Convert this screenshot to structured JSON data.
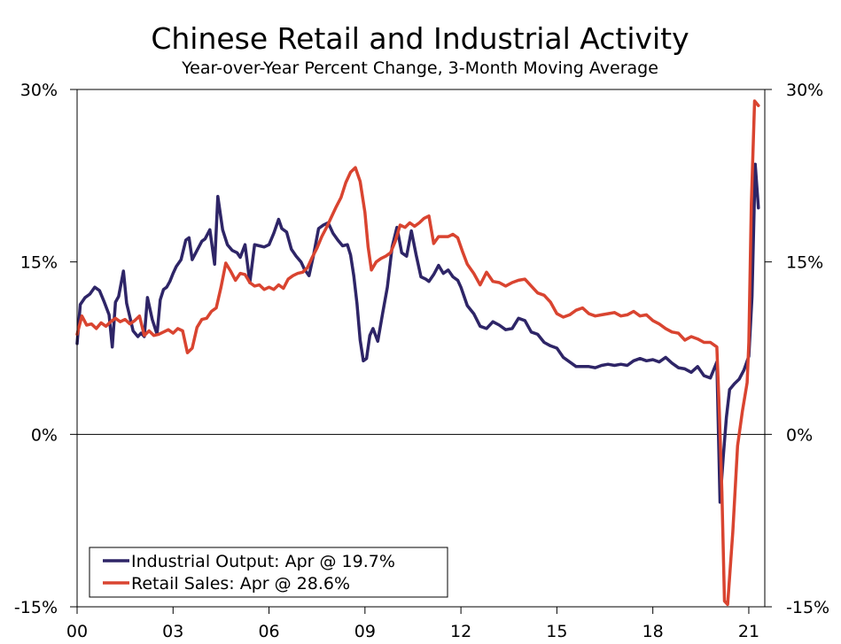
{
  "chart_data": {
    "type": "line",
    "title": "Chinese Retail and Industrial Activity",
    "subtitle": "Year-over-Year Percent Change, 3-Month Moving Average",
    "xlabel": "",
    "ylabel": "",
    "ylim": [
      -15,
      30
    ],
    "xlim": [
      2000,
      2021.5
    ],
    "y_ticks": [
      {
        "value": 30,
        "label": "30%"
      },
      {
        "value": 15,
        "label": "15%"
      },
      {
        "value": 0,
        "label": "0%"
      },
      {
        "value": -15,
        "label": "-15%"
      }
    ],
    "x_ticks": [
      {
        "value": 2000,
        "label": "00"
      },
      {
        "value": 2003,
        "label": "03"
      },
      {
        "value": 2006,
        "label": "06"
      },
      {
        "value": 2009,
        "label": "09"
      },
      {
        "value": 2012,
        "label": "12"
      },
      {
        "value": 2015,
        "label": "15"
      },
      {
        "value": 2018,
        "label": "18"
      },
      {
        "value": 2021,
        "label": "21"
      }
    ],
    "legend_position": "bottom-left",
    "series": [
      {
        "name": "Industrial Output",
        "legend_label": "Industrial Output: Apr @ 19.7%",
        "color": "#2e2567",
        "x": [
          2000.0,
          2000.1,
          2000.25,
          2000.4,
          2000.55,
          2000.7,
          2000.85,
          2001.0,
          2001.1,
          2001.2,
          2001.3,
          2001.45,
          2001.55,
          2001.65,
          2001.75,
          2001.9,
          2002.0,
          2002.1,
          2002.2,
          2002.35,
          2002.5,
          2002.6,
          2002.7,
          2002.8,
          2002.9,
          2003.0,
          2003.1,
          2003.25,
          2003.4,
          2003.5,
          2003.6,
          2003.75,
          2003.9,
          2004.0,
          2004.15,
          2004.3,
          2004.4,
          2004.55,
          2004.7,
          2004.85,
          2005.0,
          2005.1,
          2005.25,
          2005.4,
          2005.55,
          2005.7,
          2005.85,
          2006.0,
          2006.15,
          2006.3,
          2006.4,
          2006.55,
          2006.7,
          2006.85,
          2007.0,
          2007.1,
          2007.25,
          2007.4,
          2007.55,
          2007.7,
          2007.85,
          2008.0,
          2008.15,
          2008.3,
          2008.45,
          2008.55,
          2008.65,
          2008.75,
          2008.85,
          2008.95,
          2009.05,
          2009.15,
          2009.25,
          2009.4,
          2009.55,
          2009.7,
          2009.85,
          2010.0,
          2010.15,
          2010.3,
          2010.45,
          2010.6,
          2010.75,
          2010.9,
          2011.0,
          2011.15,
          2011.3,
          2011.45,
          2011.6,
          2011.75,
          2011.9,
          2012.0,
          2012.2,
          2012.4,
          2012.6,
          2012.8,
          2013.0,
          2013.2,
          2013.4,
          2013.6,
          2013.8,
          2014.0,
          2014.2,
          2014.4,
          2014.6,
          2014.8,
          2015.0,
          2015.2,
          2015.4,
          2015.6,
          2015.8,
          2016.0,
          2016.2,
          2016.4,
          2016.6,
          2016.8,
          2017.0,
          2017.2,
          2017.4,
          2017.6,
          2017.8,
          2018.0,
          2018.2,
          2018.4,
          2018.6,
          2018.8,
          2019.0,
          2019.2,
          2019.4,
          2019.6,
          2019.8,
          2020.0,
          2020.1,
          2020.2,
          2020.3,
          2020.4,
          2020.55,
          2020.7,
          2020.85,
          2021.0,
          2021.1,
          2021.2,
          2021.3
        ],
        "values": [
          7.9,
          11.3,
          11.9,
          12.2,
          12.8,
          12.5,
          11.5,
          10.4,
          7.6,
          11.5,
          12.0,
          14.2,
          11.4,
          10.2,
          9.0,
          8.5,
          8.8,
          8.5,
          11.9,
          10.0,
          8.7,
          11.7,
          12.6,
          12.8,
          13.3,
          14.0,
          14.6,
          15.2,
          16.9,
          17.1,
          15.2,
          16.0,
          16.8,
          17.0,
          17.8,
          14.8,
          20.7,
          17.8,
          16.5,
          16.0,
          15.8,
          15.4,
          16.5,
          13.2,
          16.5,
          16.4,
          16.3,
          16.5,
          17.5,
          18.7,
          17.9,
          17.6,
          16.1,
          15.5,
          15.0,
          14.4,
          13.8,
          15.7,
          17.9,
          18.2,
          18.4,
          17.5,
          16.9,
          16.4,
          16.5,
          15.6,
          13.8,
          11.4,
          8.2,
          6.4,
          6.6,
          8.6,
          9.2,
          8.1,
          10.5,
          12.8,
          16.3,
          18.0,
          15.8,
          15.5,
          17.7,
          15.6,
          13.7,
          13.5,
          13.3,
          13.9,
          14.7,
          14.0,
          14.3,
          13.7,
          13.4,
          12.8,
          11.2,
          10.5,
          9.4,
          9.2,
          9.8,
          9.5,
          9.1,
          9.2,
          10.1,
          9.9,
          8.9,
          8.7,
          8.0,
          7.7,
          7.5,
          6.7,
          6.3,
          5.9,
          5.9,
          5.9,
          5.8,
          6.0,
          6.1,
          6.0,
          6.1,
          6.0,
          6.4,
          6.6,
          6.4,
          6.5,
          6.3,
          6.7,
          6.2,
          5.8,
          5.7,
          5.4,
          5.9,
          5.1,
          4.9,
          6.3,
          -5.9,
          -2.0,
          1.5,
          3.9,
          4.4,
          4.8,
          5.6,
          6.8,
          12.0,
          23.5,
          19.7
        ]
      },
      {
        "name": "Retail Sales",
        "legend_label": "Retail Sales: Apr @ 28.6%",
        "color": "#d94430",
        "x": [
          2000.0,
          2000.15,
          2000.3,
          2000.45,
          2000.6,
          2000.75,
          2000.9,
          2001.05,
          2001.2,
          2001.35,
          2001.5,
          2001.65,
          2001.8,
          2001.95,
          2002.1,
          2002.25,
          2002.4,
          2002.55,
          2002.7,
          2002.85,
          2003.0,
          2003.15,
          2003.3,
          2003.45,
          2003.6,
          2003.75,
          2003.9,
          2004.05,
          2004.2,
          2004.35,
          2004.5,
          2004.65,
          2004.8,
          2004.95,
          2005.1,
          2005.25,
          2005.4,
          2005.55,
          2005.7,
          2005.85,
          2006.0,
          2006.15,
          2006.3,
          2006.45,
          2006.6,
          2006.75,
          2006.9,
          2007.05,
          2007.2,
          2007.35,
          2007.5,
          2007.65,
          2007.8,
          2007.95,
          2008.1,
          2008.25,
          2008.4,
          2008.55,
          2008.7,
          2008.85,
          2009.0,
          2009.1,
          2009.2,
          2009.35,
          2009.5,
          2009.65,
          2009.8,
          2009.95,
          2010.1,
          2010.25,
          2010.4,
          2010.55,
          2010.7,
          2010.85,
          2011.0,
          2011.15,
          2011.3,
          2011.45,
          2011.6,
          2011.75,
          2011.9,
          2012.05,
          2012.2,
          2012.4,
          2012.6,
          2012.8,
          2013.0,
          2013.2,
          2013.4,
          2013.6,
          2013.8,
          2014.0,
          2014.2,
          2014.4,
          2014.6,
          2014.8,
          2015.0,
          2015.2,
          2015.4,
          2015.6,
          2015.8,
          2016.0,
          2016.2,
          2016.4,
          2016.6,
          2016.8,
          2017.0,
          2017.2,
          2017.4,
          2017.6,
          2017.8,
          2018.0,
          2018.2,
          2018.4,
          2018.6,
          2018.8,
          2019.0,
          2019.2,
          2019.4,
          2019.6,
          2019.8,
          2020.0,
          2020.08,
          2020.16,
          2020.24,
          2020.34,
          2020.5,
          2020.65,
          2020.8,
          2020.95,
          2021.0,
          2021.08,
          2021.18,
          2021.3
        ],
        "values": [
          8.7,
          10.3,
          9.5,
          9.6,
          9.2,
          9.7,
          9.4,
          9.8,
          10.1,
          9.8,
          10.0,
          9.6,
          9.9,
          10.3,
          8.6,
          9.0,
          8.6,
          8.7,
          8.9,
          9.1,
          8.8,
          9.2,
          9.0,
          7.1,
          7.5,
          9.3,
          10.0,
          10.1,
          10.7,
          11.0,
          12.8,
          14.9,
          14.2,
          13.4,
          14.0,
          13.9,
          13.2,
          12.9,
          13.0,
          12.6,
          12.8,
          12.6,
          13.0,
          12.7,
          13.5,
          13.8,
          14.0,
          14.1,
          14.5,
          15.4,
          16.2,
          17.2,
          18.0,
          18.9,
          19.8,
          20.6,
          21.9,
          22.8,
          23.2,
          22.0,
          19.3,
          16.3,
          14.3,
          15.0,
          15.3,
          15.5,
          15.8,
          16.8,
          18.2,
          18.0,
          18.4,
          18.1,
          18.4,
          18.8,
          19.0,
          16.6,
          17.2,
          17.2,
          17.2,
          17.4,
          17.1,
          15.9,
          14.8,
          14.0,
          13.0,
          14.1,
          13.3,
          13.2,
          12.9,
          13.2,
          13.4,
          13.5,
          12.9,
          12.3,
          12.1,
          11.5,
          10.5,
          10.2,
          10.4,
          10.8,
          11.0,
          10.5,
          10.3,
          10.4,
          10.5,
          10.6,
          10.3,
          10.4,
          10.7,
          10.3,
          10.4,
          9.9,
          9.6,
          9.2,
          8.9,
          8.8,
          8.2,
          8.5,
          8.3,
          8.0,
          8.0,
          7.6,
          2.0,
          -5.0,
          -14.5,
          -14.8,
          -8.5,
          -1.0,
          2.0,
          4.5,
          8.0,
          20.0,
          29.0,
          28.6
        ]
      }
    ]
  }
}
